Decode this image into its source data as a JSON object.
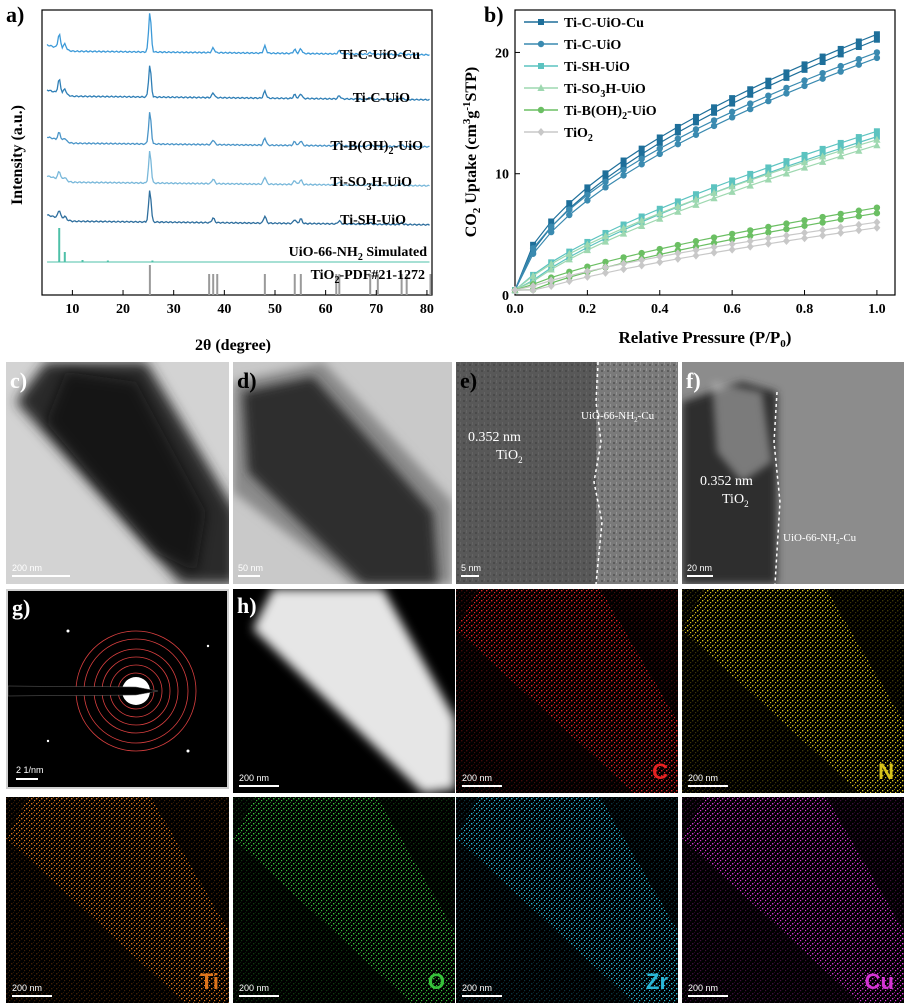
{
  "panel_labels": {
    "a": "a)",
    "b": "b)",
    "c": "c)",
    "d": "d)",
    "e": "e)",
    "f": "f)",
    "g": "g)",
    "h": "h)"
  },
  "chart_data": [
    {
      "type": "line",
      "xlabel": "2θ (degree)",
      "ylabel": "Intensity (a.u.)",
      "xlim": [
        4,
        81
      ],
      "xticks": [
        10,
        20,
        30,
        40,
        50,
        60,
        70,
        80
      ],
      "series": [
        {
          "name": "Ti-C-UiO-Cu",
          "color": "#3d9ad8"
        },
        {
          "name": "Ti-C-UiO",
          "color": "#2f7fb6"
        },
        {
          "name": "Ti-B(OH)2-UiO",
          "color": "#4a95c8"
        },
        {
          "name": "Ti-SO3H-UiO",
          "color": "#79b8da"
        },
        {
          "name": "Ti-SH-UiO",
          "color": "#2f6f9e"
        },
        {
          "name": "UiO-66-NH2 Simulated",
          "color": "#4ec0a8"
        },
        {
          "name": "TiO2-PDF#21-1272",
          "color": "#9a9a9a"
        }
      ],
      "main_peak_2theta": 25.3,
      "tio2_reference_2theta": [
        25.3,
        37.0,
        37.8,
        38.6,
        48.0,
        53.9,
        55.1,
        62.1,
        62.7,
        68.8,
        70.3,
        75.0,
        76.0,
        80.7
      ]
    },
    {
      "type": "line",
      "xlabel": "Relative Pressure (P/P0)",
      "ylabel": "CO2 Uptake (cm3 g-1 STP)",
      "xlim": [
        0,
        1.05
      ],
      "ylim": [
        0,
        23.5
      ],
      "xticks": [
        "0.0",
        "0.2",
        "0.4",
        "0.6",
        "0.8",
        "1.0"
      ],
      "yticks": [
        "0",
        "10",
        "20"
      ],
      "series": [
        {
          "name": "Ti-C-UiO-Cu",
          "color": "#1e6f9a",
          "marker": "square",
          "max": 21.5
        },
        {
          "name": "Ti-C-UiO",
          "color": "#3a8ab0",
          "marker": "circle",
          "max": 20.0
        },
        {
          "name": "Ti-SH-UiO",
          "color": "#5cc3c0",
          "marker": "square",
          "max": 13.5
        },
        {
          "name": "Ti-SO3H-UiO",
          "color": "#9ed8b0",
          "marker": "triangle",
          "max": 12.8
        },
        {
          "name": "Ti-B(OH)2-UiO",
          "color": "#6bbf63",
          "marker": "circle",
          "max": 7.2
        },
        {
          "name": "TiO2",
          "color": "#c8c8c8",
          "marker": "diamond",
          "max": 6.0
        }
      ],
      "x": [
        0.0,
        0.05,
        0.1,
        0.15,
        0.2,
        0.25,
        0.3,
        0.35,
        0.4,
        0.45,
        0.5,
        0.55,
        0.6,
        0.65,
        0.7,
        0.75,
        0.8,
        0.85,
        0.9,
        0.95,
        1.0
      ]
    }
  ],
  "xrd_labels": {
    "ylabel": "Intensity (a.u.)",
    "xlabel": "2θ (degree)",
    "s1": "Ti-C-UiO-Cu",
    "s2": "Ti-C-UiO",
    "s3_pre": "Ti-B(OH)",
    "s3_sub": "2",
    "s3_post": "-UiO",
    "s4_pre": "Ti-SO",
    "s4_sub": "3",
    "s4_post": "H-UiO",
    "s5": "Ti-SH-UiO",
    "s6_pre": "UiO-66-NH",
    "s6_sub": "2",
    "s6_post": " Simulated",
    "s7_pre": "TiO",
    "s7_sub": "2",
    "s7_post": "-PDF#21-1272",
    "xt": [
      "10",
      "20",
      "30",
      "40",
      "50",
      "60",
      "70",
      "80"
    ]
  },
  "co2_labels": {
    "yl_pre": "CO",
    "yl_sub": "2",
    "yl_mid": " Uptake (cm",
    "yl_sup1": "3",
    "yl_g": "g",
    "yl_sup2": "-1",
    "yl_post": "STP)",
    "xl_pre": "Relative Pressure (P/P",
    "xl_sub": "0",
    "xl_post": ")",
    "xt": [
      "0.0",
      "0.2",
      "0.4",
      "0.6",
      "0.8",
      "1.0"
    ],
    "yt": [
      "0",
      "10",
      "20"
    ],
    "leg1": "Ti-C-UiO-Cu",
    "leg2": "Ti-C-UiO",
    "leg3": "Ti-SH-UiO",
    "leg4_pre": "Ti-SO",
    "leg4_sub": "3",
    "leg4_post": "H-UiO",
    "leg5_pre": "Ti-B(OH)",
    "leg5_sub": "2",
    "leg5_post": "-UiO",
    "leg6_pre": "TiO",
    "leg6_sub": "2"
  },
  "tem": {
    "c_scale": "200 nm",
    "d_scale": "50 nm",
    "e_dspacing": "0.352 nm",
    "e_phase_pre": "TiO",
    "e_phase_sub": "2",
    "e_region_pre": "UiO-66-NH",
    "e_region_sub": "2",
    "e_region_post": "-Cu",
    "e_scale": "5 nm",
    "f_dspacing": "0.352 nm",
    "f_phase_pre": "TiO",
    "f_phase_sub": "2",
    "f_region_pre": "UiO-66-NH",
    "f_region_sub": "2",
    "f_region_post": "-Cu",
    "f_scale": "20 nm",
    "g_scale": "2 1/nm"
  },
  "eds": {
    "scale": "200 nm",
    "maps": [
      {
        "element": "C",
        "color": "#e32222"
      },
      {
        "element": "N",
        "color": "#d8c31a"
      },
      {
        "element": "Ti",
        "color": "#e0751c"
      },
      {
        "element": "O",
        "color": "#37c13a"
      },
      {
        "element": "Zr",
        "color": "#2ab7d6"
      },
      {
        "element": "Cu",
        "color": "#d434d4"
      }
    ]
  }
}
